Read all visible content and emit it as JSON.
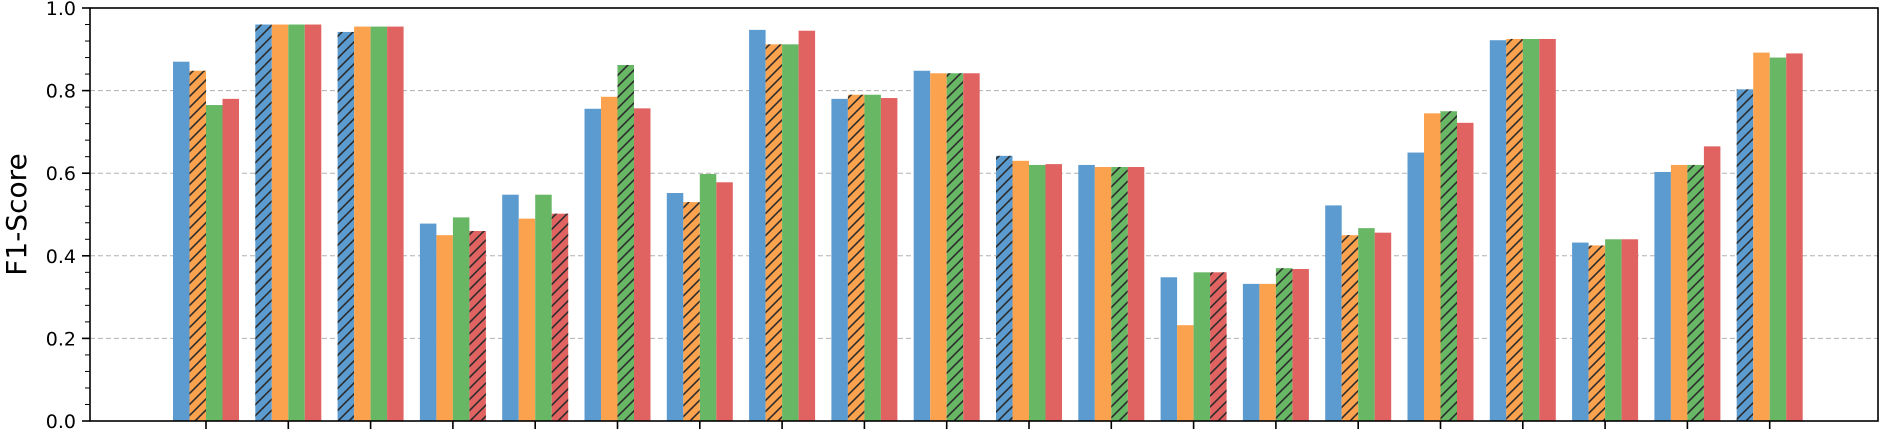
{
  "chart_data": {
    "type": "bar",
    "title": "",
    "xlabel": "",
    "ylabel": "F1-Score",
    "ylim": [
      0.0,
      1.0
    ],
    "yticks": [
      "0.0",
      "0.2",
      "0.4",
      "0.6",
      "0.8",
      "1.0"
    ],
    "grid": "horizontal dashed",
    "n_groups": 20,
    "series_colors": [
      "#5b9bd0",
      "#fba24f",
      "#68b765",
      "#e06361"
    ],
    "groups": [
      {
        "values": [
          0.87,
          0.848,
          0.765,
          0.78
        ],
        "hatched": 1
      },
      {
        "values": [
          0.96,
          0.96,
          0.96,
          0.96
        ],
        "hatched": 0
      },
      {
        "values": [
          0.942,
          0.955,
          0.955,
          0.955
        ],
        "hatched": 0
      },
      {
        "values": [
          0.478,
          0.45,
          0.493,
          0.46
        ],
        "hatched": 3
      },
      {
        "values": [
          0.548,
          0.49,
          0.548,
          0.502
        ],
        "hatched": 3
      },
      {
        "values": [
          0.756,
          0.785,
          0.862,
          0.757
        ],
        "hatched": 2
      },
      {
        "values": [
          0.552,
          0.53,
          0.598,
          0.578
        ],
        "hatched": 1
      },
      {
        "values": [
          0.947,
          0.912,
          0.912,
          0.945
        ],
        "hatched": 1
      },
      {
        "values": [
          0.78,
          0.79,
          0.79,
          0.782
        ],
        "hatched": 1
      },
      {
        "values": [
          0.848,
          0.842,
          0.842,
          0.842
        ],
        "hatched": 2
      },
      {
        "values": [
          0.642,
          0.63,
          0.62,
          0.622
        ],
        "hatched": 0
      },
      {
        "values": [
          0.62,
          0.615,
          0.615,
          0.615
        ],
        "hatched": 2
      },
      {
        "values": [
          0.348,
          0.232,
          0.36,
          0.36
        ],
        "hatched": 3
      },
      {
        "values": [
          0.332,
          0.332,
          0.37,
          0.368
        ],
        "hatched": 2
      },
      {
        "values": [
          0.522,
          0.45,
          0.467,
          0.456
        ],
        "hatched": 1
      },
      {
        "values": [
          0.65,
          0.745,
          0.75,
          0.722
        ],
        "hatched": 2
      },
      {
        "values": [
          0.922,
          0.925,
          0.925,
          0.925
        ],
        "hatched": 1
      },
      {
        "values": [
          0.432,
          0.425,
          0.44,
          0.44
        ],
        "hatched": 1
      },
      {
        "values": [
          0.603,
          0.62,
          0.62,
          0.665
        ],
        "hatched": 2
      },
      {
        "values": [
          0.803,
          0.892,
          0.88,
          0.89
        ],
        "hatched": 0
      }
    ]
  }
}
